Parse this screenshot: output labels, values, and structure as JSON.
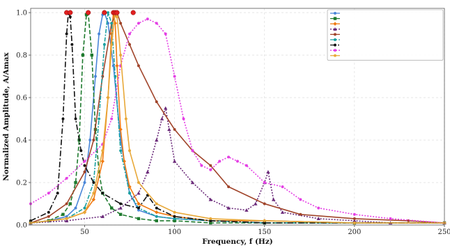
{
  "chart_data": {
    "type": "line",
    "title": "",
    "xlabel": "Frequency, f (Hz)",
    "ylabel": "Normalized Amplitude, A/Amax",
    "xlim": [
      20,
      250
    ],
    "ylim": [
      0,
      1.02
    ],
    "xticks": [
      "50",
      "100",
      "150",
      "200",
      "250"
    ],
    "yticks": [
      "0.0",
      "0.2",
      "0.4",
      "0.6",
      "0.8",
      "1.0"
    ],
    "grid": true,
    "legend_position": "top-right",
    "series": [
      {
        "name": "",
        "color": "#4a86d8",
        "dash": "",
        "marker": "circle",
        "x": [
          20,
          30,
          40,
          45,
          50,
          53,
          56,
          58,
          60,
          61,
          63,
          66,
          70,
          75,
          80,
          90,
          100,
          120,
          150,
          200,
          250
        ],
        "y": [
          0.01,
          0.02,
          0.04,
          0.08,
          0.2,
          0.4,
          0.7,
          0.9,
          0.99,
          1.0,
          0.95,
          0.75,
          0.4,
          0.15,
          0.07,
          0.04,
          0.03,
          0.02,
          0.02,
          0.01,
          0.01
        ]
      },
      {
        "name": "",
        "color": "#1e7a2e",
        "dash": "6,3",
        "marker": "square",
        "x": [
          20,
          30,
          38,
          42,
          45,
          47,
          49,
          51,
          52,
          54,
          56,
          58,
          60,
          65,
          70,
          80,
          90,
          100,
          120,
          150,
          200,
          250
        ],
        "y": [
          0.01,
          0.02,
          0.05,
          0.1,
          0.2,
          0.4,
          0.8,
          0.99,
          1.0,
          0.8,
          0.45,
          0.25,
          0.15,
          0.08,
          0.05,
          0.03,
          0.02,
          0.02,
          0.01,
          0.01,
          0.01,
          0.01
        ]
      },
      {
        "name": "",
        "color": "#f07a12",
        "dash": "",
        "marker": "diamond",
        "x": [
          20,
          40,
          50,
          55,
          60,
          63,
          65,
          66,
          67,
          68,
          70,
          72,
          75,
          80,
          90,
          100,
          120,
          150,
          200,
          250
        ],
        "y": [
          0.01,
          0.03,
          0.06,
          0.12,
          0.3,
          0.6,
          0.9,
          1.0,
          0.95,
          0.75,
          0.45,
          0.3,
          0.18,
          0.1,
          0.06,
          0.04,
          0.02,
          0.02,
          0.01,
          0.01
        ]
      },
      {
        "name": "",
        "color": "#6b2a7a",
        "dash": "2,2",
        "marker": "triangle",
        "x": [
          20,
          40,
          60,
          70,
          80,
          85,
          90,
          93,
          95,
          97,
          100,
          110,
          120,
          130,
          140,
          145,
          150,
          152,
          155,
          160,
          180,
          200,
          220,
          250
        ],
        "y": [
          0.01,
          0.02,
          0.04,
          0.08,
          0.15,
          0.25,
          0.4,
          0.5,
          0.55,
          0.45,
          0.3,
          0.2,
          0.12,
          0.08,
          0.07,
          0.1,
          0.2,
          0.25,
          0.12,
          0.06,
          0.03,
          0.02,
          0.01,
          0.01
        ]
      },
      {
        "name": "",
        "color": "#a0442a",
        "dash": "",
        "marker": "circle",
        "x": [
          20,
          30,
          40,
          50,
          55,
          60,
          65,
          68,
          70,
          75,
          80,
          90,
          100,
          110,
          120,
          130,
          150,
          170,
          200,
          230,
          250
        ],
        "y": [
          0.01,
          0.04,
          0.1,
          0.25,
          0.4,
          0.7,
          0.95,
          1.0,
          0.95,
          0.85,
          0.75,
          0.58,
          0.45,
          0.35,
          0.28,
          0.18,
          0.1,
          0.05,
          0.03,
          0.02,
          0.01
        ]
      },
      {
        "name": "",
        "color": "#1aa0a0",
        "dash": "6,2,2,2",
        "marker": "circle",
        "x": [
          20,
          40,
          50,
          55,
          58,
          61,
          63,
          65,
          67,
          70,
          75,
          80,
          90,
          100,
          120,
          150,
          200,
          250
        ],
        "y": [
          0.01,
          0.03,
          0.08,
          0.2,
          0.5,
          0.85,
          1.0,
          0.95,
          0.7,
          0.35,
          0.15,
          0.08,
          0.04,
          0.03,
          0.02,
          0.01,
          0.01,
          0.01
        ]
      },
      {
        "name": "",
        "color": "#111111",
        "dash": "8,3,2,3",
        "marker": "circle",
        "x": [
          20,
          30,
          35,
          38,
          40,
          41,
          42,
          43,
          45,
          48,
          50,
          55,
          60,
          70,
          80,
          85,
          90,
          100,
          120,
          150,
          200,
          250
        ],
        "y": [
          0.02,
          0.06,
          0.15,
          0.5,
          0.9,
          1.0,
          0.98,
          0.85,
          0.5,
          0.35,
          0.28,
          0.2,
          0.15,
          0.1,
          0.08,
          0.14,
          0.08,
          0.04,
          0.02,
          0.01,
          0.01,
          0.01
        ]
      },
      {
        "name": "",
        "color": "#e43fe4",
        "dash": "2,2",
        "marker": "circle",
        "x": [
          20,
          30,
          40,
          50,
          60,
          65,
          70,
          75,
          80,
          85,
          90,
          95,
          100,
          105,
          110,
          115,
          120,
          125,
          130,
          135,
          140,
          150,
          160,
          170,
          180,
          200,
          220,
          250
        ],
        "y": [
          0.1,
          0.15,
          0.22,
          0.3,
          0.38,
          0.5,
          0.75,
          0.9,
          0.95,
          0.97,
          0.95,
          0.9,
          0.7,
          0.5,
          0.35,
          0.28,
          0.26,
          0.3,
          0.32,
          0.3,
          0.28,
          0.2,
          0.18,
          0.12,
          0.08,
          0.05,
          0.03,
          0.01
        ]
      },
      {
        "name": "",
        "color": "#e8a838",
        "dash": "",
        "marker": "circle",
        "x": [
          20,
          40,
          50,
          55,
          60,
          63,
          65,
          67,
          68,
          70,
          73,
          75,
          80,
          90,
          100,
          120,
          150,
          200,
          250
        ],
        "y": [
          0.01,
          0.03,
          0.06,
          0.15,
          0.35,
          0.6,
          0.85,
          1.0,
          0.98,
          0.8,
          0.5,
          0.35,
          0.2,
          0.1,
          0.06,
          0.03,
          0.02,
          0.01,
          0.01
        ]
      }
    ],
    "peak_markers": {
      "color": "#e02020",
      "x": [
        40,
        42,
        52,
        61,
        66,
        67,
        68,
        77
      ],
      "y": [
        1.0,
        1.0,
        1.0,
        1.0,
        1.0,
        1.0,
        1.0,
        1.0
      ]
    }
  }
}
